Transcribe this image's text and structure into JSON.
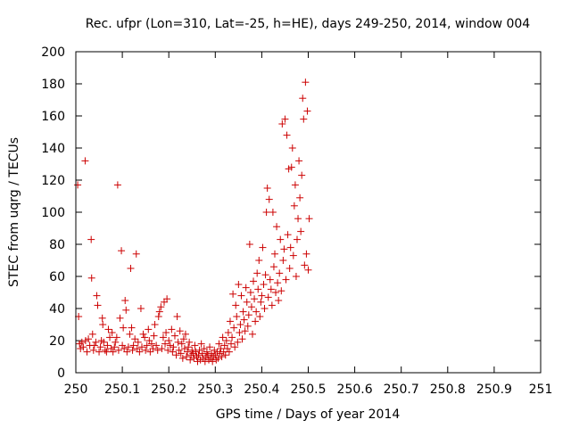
{
  "chart_data": {
    "type": "scatter",
    "title": "Rec. ufpr (Lon=310, Lat=-25, h=HE), days 249-250, 2014, window 004",
    "xlabel": "GPS time / Days of year 2014",
    "ylabel": "STEC from uqrg / TECUs",
    "xlim": [
      250,
      251
    ],
    "ylim": [
      0,
      200
    ],
    "x_ticks": [
      "250",
      "250.1",
      "250.2",
      "250.3",
      "250.4",
      "250.5",
      "250.6",
      "250.7",
      "250.8",
      "250.9",
      "251"
    ],
    "y_ticks": [
      "0",
      "20",
      "40",
      "60",
      "80",
      "100",
      "120",
      "140",
      "160",
      "180",
      "200"
    ],
    "x_tick_values": [
      250,
      250.1,
      250.2,
      250.3,
      250.4,
      250.5,
      250.6,
      250.7,
      250.8,
      250.9,
      251
    ],
    "y_tick_values": [
      0,
      20,
      40,
      60,
      80,
      100,
      120,
      140,
      160,
      180,
      200
    ],
    "marker": "plus",
    "grid": false,
    "color": "#cc0000",
    "points": [
      [
        250.004,
        117
      ],
      [
        250.006,
        35
      ],
      [
        250.008,
        18
      ],
      [
        250.01,
        15
      ],
      [
        250.013,
        19
      ],
      [
        250.016,
        16
      ],
      [
        250.02,
        132
      ],
      [
        250.021,
        20
      ],
      [
        250.024,
        13
      ],
      [
        250.027,
        21
      ],
      [
        250.03,
        17
      ],
      [
        250.033,
        83
      ],
      [
        250.034,
        59
      ],
      [
        250.036,
        24
      ],
      [
        250.038,
        14
      ],
      [
        250.04,
        17
      ],
      [
        250.043,
        19
      ],
      [
        250.045,
        48
      ],
      [
        250.047,
        42
      ],
      [
        250.05,
        13
      ],
      [
        250.053,
        16
      ],
      [
        250.055,
        20
      ],
      [
        250.057,
        34
      ],
      [
        250.058,
        30
      ],
      [
        250.06,
        19
      ],
      [
        250.063,
        14
      ],
      [
        250.066,
        13
      ],
      [
        250.068,
        17
      ],
      [
        250.07,
        27
      ],
      [
        250.073,
        22
      ],
      [
        250.076,
        15
      ],
      [
        250.078,
        25
      ],
      [
        250.08,
        13
      ],
      [
        250.083,
        16
      ],
      [
        250.085,
        19
      ],
      [
        250.088,
        22
      ],
      [
        250.09,
        117
      ],
      [
        250.092,
        14
      ],
      [
        250.095,
        34
      ],
      [
        250.098,
        76
      ],
      [
        250.1,
        17
      ],
      [
        250.102,
        28
      ],
      [
        250.104,
        15
      ],
      [
        250.106,
        45
      ],
      [
        250.108,
        39
      ],
      [
        250.11,
        13
      ],
      [
        250.113,
        16
      ],
      [
        250.116,
        24
      ],
      [
        250.118,
        65
      ],
      [
        250.12,
        28
      ],
      [
        250.122,
        14
      ],
      [
        250.124,
        17
      ],
      [
        250.127,
        21
      ],
      [
        250.13,
        74
      ],
      [
        250.132,
        15
      ],
      [
        250.134,
        19
      ],
      [
        250.137,
        13
      ],
      [
        250.14,
        40
      ],
      [
        250.142,
        16
      ],
      [
        250.145,
        24
      ],
      [
        250.148,
        22
      ],
      [
        250.15,
        14
      ],
      [
        250.153,
        17
      ],
      [
        250.156,
        27
      ],
      [
        250.158,
        20
      ],
      [
        250.16,
        13
      ],
      [
        250.163,
        18
      ],
      [
        250.166,
        15
      ],
      [
        250.168,
        23
      ],
      [
        250.17,
        30
      ],
      [
        250.173,
        17
      ],
      [
        250.176,
        14
      ],
      [
        250.178,
        35
      ],
      [
        250.18,
        38
      ],
      [
        250.183,
        41
      ],
      [
        250.185,
        15
      ],
      [
        250.188,
        22
      ],
      [
        250.19,
        44
      ],
      [
        250.192,
        18
      ],
      [
        250.194,
        25
      ],
      [
        250.196,
        46
      ],
      [
        250.198,
        14
      ],
      [
        250.2,
        20
      ],
      [
        250.203,
        17
      ],
      [
        250.206,
        27
      ],
      [
        250.208,
        13
      ],
      [
        250.21,
        16
      ],
      [
        250.213,
        23
      ],
      [
        250.216,
        11
      ],
      [
        250.218,
        35
      ],
      [
        250.22,
        19
      ],
      [
        250.222,
        14
      ],
      [
        250.224,
        26
      ],
      [
        250.226,
        12
      ],
      [
        250.228,
        18
      ],
      [
        250.23,
        9
      ],
      [
        250.232,
        21
      ],
      [
        250.234,
        15
      ],
      [
        250.236,
        24
      ],
      [
        250.238,
        10
      ],
      [
        250.24,
        13
      ],
      [
        250.242,
        16
      ],
      [
        250.244,
        19
      ],
      [
        250.246,
        8
      ],
      [
        250.248,
        11
      ],
      [
        250.25,
        14
      ],
      [
        250.252,
        12
      ],
      [
        250.254,
        9
      ],
      [
        250.256,
        17
      ],
      [
        250.258,
        13
      ],
      [
        250.26,
        10
      ],
      [
        250.262,
        7
      ],
      [
        250.264,
        11
      ],
      [
        250.266,
        14
      ],
      [
        250.268,
        8
      ],
      [
        250.27,
        18
      ],
      [
        250.272,
        12
      ],
      [
        250.274,
        9
      ],
      [
        250.276,
        15
      ],
      [
        250.278,
        7
      ],
      [
        250.28,
        10
      ],
      [
        250.282,
        13
      ],
      [
        250.284,
        11
      ],
      [
        250.286,
        8
      ],
      [
        250.288,
        16
      ],
      [
        250.29,
        9
      ],
      [
        250.292,
        12
      ],
      [
        250.294,
        7
      ],
      [
        250.296,
        10
      ],
      [
        250.298,
        14
      ],
      [
        250.3,
        11
      ],
      [
        250.302,
        8
      ],
      [
        250.304,
        13
      ],
      [
        250.306,
        9
      ],
      [
        250.308,
        18
      ],
      [
        250.31,
        12
      ],
      [
        250.312,
        15
      ],
      [
        250.314,
        10
      ],
      [
        250.316,
        22
      ],
      [
        250.318,
        13
      ],
      [
        250.32,
        17
      ],
      [
        250.322,
        11
      ],
      [
        250.324,
        20
      ],
      [
        250.326,
        15
      ],
      [
        250.328,
        25
      ],
      [
        250.33,
        13
      ],
      [
        250.332,
        32
      ],
      [
        250.334,
        18
      ],
      [
        250.336,
        22
      ],
      [
        250.338,
        49
      ],
      [
        250.34,
        28
      ],
      [
        250.342,
        16
      ],
      [
        250.344,
        42
      ],
      [
        250.346,
        35
      ],
      [
        250.348,
        19
      ],
      [
        250.35,
        55
      ],
      [
        250.352,
        25
      ],
      [
        250.354,
        30
      ],
      [
        250.356,
        48
      ],
      [
        250.358,
        21
      ],
      [
        250.36,
        38
      ],
      [
        250.362,
        33
      ],
      [
        250.364,
        26
      ],
      [
        250.366,
        53
      ],
      [
        250.368,
        44
      ],
      [
        250.37,
        29
      ],
      [
        250.372,
        36
      ],
      [
        250.374,
        80
      ],
      [
        250.376,
        50
      ],
      [
        250.378,
        41
      ],
      [
        250.38,
        24
      ],
      [
        250.382,
        57
      ],
      [
        250.384,
        46
      ],
      [
        250.386,
        32
      ],
      [
        250.388,
        38
      ],
      [
        250.39,
        62
      ],
      [
        250.392,
        52
      ],
      [
        250.394,
        70
      ],
      [
        250.396,
        35
      ],
      [
        250.398,
        44
      ],
      [
        250.4,
        48
      ],
      [
        250.402,
        78
      ],
      [
        250.404,
        55
      ],
      [
        250.406,
        40
      ],
      [
        250.408,
        61
      ],
      [
        250.41,
        100
      ],
      [
        250.412,
        115
      ],
      [
        250.414,
        47
      ],
      [
        250.416,
        108
      ],
      [
        250.418,
        58
      ],
      [
        250.42,
        52
      ],
      [
        250.422,
        42
      ],
      [
        250.424,
        100
      ],
      [
        250.426,
        66
      ],
      [
        250.428,
        74
      ],
      [
        250.43,
        50
      ],
      [
        250.432,
        91
      ],
      [
        250.434,
        56
      ],
      [
        250.436,
        45
      ],
      [
        250.438,
        62
      ],
      [
        250.44,
        83
      ],
      [
        250.442,
        51
      ],
      [
        250.444,
        155
      ],
      [
        250.446,
        70
      ],
      [
        250.448,
        77
      ],
      [
        250.45,
        158
      ],
      [
        250.452,
        58
      ],
      [
        250.454,
        148
      ],
      [
        250.456,
        86
      ],
      [
        250.458,
        127
      ],
      [
        250.46,
        65
      ],
      [
        250.462,
        78
      ],
      [
        250.464,
        128
      ],
      [
        250.466,
        140
      ],
      [
        250.468,
        73
      ],
      [
        250.47,
        104
      ],
      [
        250.472,
        117
      ],
      [
        250.474,
        60
      ],
      [
        250.476,
        83
      ],
      [
        250.478,
        96
      ],
      [
        250.48,
        132
      ],
      [
        250.482,
        109
      ],
      [
        250.484,
        88
      ],
      [
        250.486,
        123
      ],
      [
        250.488,
        171
      ],
      [
        250.49,
        158
      ],
      [
        250.492,
        67
      ],
      [
        250.494,
        181
      ],
      [
        250.496,
        74
      ],
      [
        250.498,
        163
      ],
      [
        250.5,
        64
      ],
      [
        250.502,
        96
      ]
    ]
  }
}
